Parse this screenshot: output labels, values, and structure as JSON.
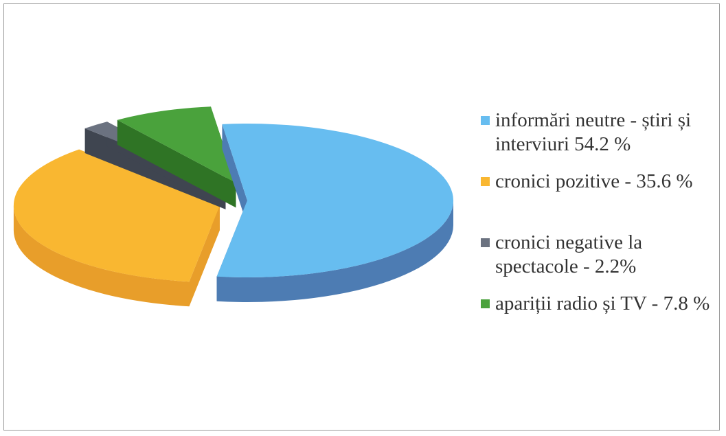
{
  "chart_data": {
    "type": "pie",
    "legend_position": "right",
    "series": [
      {
        "name": "informări neutre - știri și interviuri 54.2 %",
        "value": 54.2,
        "color": "#67bdf0",
        "side_color": "#4d7cb3"
      },
      {
        "name": "cronici pozitive - 35.6 %",
        "value": 35.6,
        "color": "#f9b731",
        "side_color": "#e89e2a"
      },
      {
        "name": "cronici negative la spectacole - 2.2%",
        "value": 2.2,
        "color": "#6b7280",
        "side_color": "#3f4550"
      },
      {
        "name": "apariții radio și TV - 7.8 %",
        "value": 7.8,
        "color": "#4aa23c",
        "side_color": "#2f7425"
      }
    ]
  }
}
